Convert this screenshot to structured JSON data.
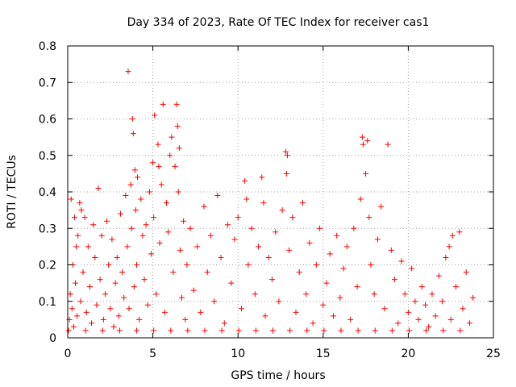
{
  "chart_data": {
    "type": "scatter",
    "title": "Day 334 of 2023, Rate Of TEC Index for receiver cas1",
    "xlabel": "GPS time / hours",
    "ylabel": "ROTI / TECUs",
    "xlim": [
      0,
      25
    ],
    "ylim": [
      0,
      0.8
    ],
    "xticks": [
      0,
      5,
      10,
      15,
      20,
      25
    ],
    "yticks": [
      0,
      0.1,
      0.2,
      0.3,
      0.4,
      0.5,
      0.6,
      0.7,
      0.8
    ],
    "xtick_labels": [
      "0",
      "5",
      "10",
      "15",
      "20",
      "25"
    ],
    "ytick_labels": [
      "0",
      "0.1",
      "0.2",
      "0.3",
      "0.4",
      "0.5",
      "0.6",
      "0.7",
      "0.8"
    ],
    "grid": true,
    "marker": "+",
    "color": "#ff0000",
    "series": [
      {
        "name": "ROTI",
        "points": [
          [
            0.1,
            0.05
          ],
          [
            0.15,
            0.12
          ],
          [
            0.2,
            0.38
          ],
          [
            0.25,
            0.08
          ],
          [
            0.3,
            0.2
          ],
          [
            0.35,
            0.03
          ],
          [
            0.4,
            0.33
          ],
          [
            0.45,
            0.15
          ],
          [
            0.5,
            0.25
          ],
          [
            0.55,
            0.06
          ],
          [
            0.6,
            0.28
          ],
          [
            0.7,
            0.37
          ],
          [
            0.75,
            0.1
          ],
          [
            0.8,
            0.35
          ],
          [
            0.9,
            0.18
          ],
          [
            1.0,
            0.33
          ],
          [
            1.1,
            0.07
          ],
          [
            1.2,
            0.25
          ],
          [
            1.3,
            0.14
          ],
          [
            1.4,
            0.04
          ],
          [
            1.5,
            0.31
          ],
          [
            1.6,
            0.22
          ],
          [
            1.7,
            0.09
          ],
          [
            1.8,
            0.41
          ],
          [
            1.9,
            0.16
          ],
          [
            2.0,
            0.28
          ],
          [
            2.1,
            0.05
          ],
          [
            2.2,
            0.12
          ],
          [
            2.3,
            0.32
          ],
          [
            2.4,
            0.2
          ],
          [
            2.5,
            0.08
          ],
          [
            2.6,
            0.27
          ],
          [
            2.7,
            0.03
          ],
          [
            2.8,
            0.15
          ],
          [
            2.9,
            0.22
          ],
          [
            3.0,
            0.06
          ],
          [
            3.1,
            0.34
          ],
          [
            3.2,
            0.18
          ],
          [
            3.3,
            0.11
          ],
          [
            3.4,
            0.39
          ],
          [
            3.5,
            0.25
          ],
          [
            3.55,
            0.73
          ],
          [
            3.6,
            0.08
          ],
          [
            3.7,
            0.42
          ],
          [
            3.75,
            0.3
          ],
          [
            3.8,
            0.6
          ],
          [
            3.85,
            0.56
          ],
          [
            3.9,
            0.14
          ],
          [
            3.95,
            0.46
          ],
          [
            4.0,
            0.35
          ],
          [
            4.05,
            0.2
          ],
          [
            4.1,
            0.44
          ],
          [
            4.2,
            0.05
          ],
          [
            4.3,
            0.38
          ],
          [
            4.4,
            0.28
          ],
          [
            4.5,
            0.16
          ],
          [
            4.6,
            0.31
          ],
          [
            4.7,
            0.09
          ],
          [
            4.8,
            0.4
          ],
          [
            4.9,
            0.23
          ],
          [
            5.0,
            0.48
          ],
          [
            5.05,
            0.33
          ],
          [
            5.1,
            0.61
          ],
          [
            5.2,
            0.12
          ],
          [
            5.3,
            0.53
          ],
          [
            5.35,
            0.47
          ],
          [
            5.4,
            0.26
          ],
          [
            5.5,
            0.42
          ],
          [
            5.6,
            0.64
          ],
          [
            5.7,
            0.07
          ],
          [
            5.8,
            0.37
          ],
          [
            5.9,
            0.29
          ],
          [
            6.0,
            0.5
          ],
          [
            6.1,
            0.55
          ],
          [
            6.2,
            0.18
          ],
          [
            6.3,
            0.47
          ],
          [
            6.4,
            0.64
          ],
          [
            6.45,
            0.58
          ],
          [
            6.5,
            0.4
          ],
          [
            6.55,
            0.52
          ],
          [
            6.6,
            0.24
          ],
          [
            6.7,
            0.11
          ],
          [
            6.8,
            0.32
          ],
          [
            6.9,
            0.05
          ],
          [
            7.0,
            0.2
          ],
          [
            7.2,
            0.3
          ],
          [
            7.4,
            0.13
          ],
          [
            7.6,
            0.25
          ],
          [
            7.8,
            0.07
          ],
          [
            8.0,
            0.36
          ],
          [
            8.2,
            0.18
          ],
          [
            8.4,
            0.28
          ],
          [
            8.6,
            0.1
          ],
          [
            8.8,
            0.39
          ],
          [
            9.0,
            0.22
          ],
          [
            9.2,
            0.04
          ],
          [
            9.4,
            0.31
          ],
          [
            9.6,
            0.15
          ],
          [
            9.8,
            0.27
          ],
          [
            10.0,
            0.33
          ],
          [
            10.2,
            0.08
          ],
          [
            10.4,
            0.43
          ],
          [
            10.5,
            0.38
          ],
          [
            10.6,
            0.2
          ],
          [
            10.8,
            0.3
          ],
          [
            11.0,
            0.12
          ],
          [
            11.2,
            0.25
          ],
          [
            11.4,
            0.44
          ],
          [
            11.5,
            0.37
          ],
          [
            11.6,
            0.06
          ],
          [
            11.8,
            0.22
          ],
          [
            12.0,
            0.16
          ],
          [
            12.2,
            0.29
          ],
          [
            12.4,
            0.1
          ],
          [
            12.6,
            0.35
          ],
          [
            12.8,
            0.51
          ],
          [
            12.85,
            0.45
          ],
          [
            12.9,
            0.5
          ],
          [
            13.0,
            0.24
          ],
          [
            13.2,
            0.33
          ],
          [
            13.4,
            0.07
          ],
          [
            13.6,
            0.18
          ],
          [
            13.8,
            0.37
          ],
          [
            14.0,
            0.12
          ],
          [
            14.2,
            0.26
          ],
          [
            14.4,
            0.04
          ],
          [
            14.6,
            0.2
          ],
          [
            14.8,
            0.3
          ],
          [
            15.0,
            0.09
          ],
          [
            15.2,
            0.15
          ],
          [
            15.4,
            0.23
          ],
          [
            15.6,
            0.06
          ],
          [
            15.8,
            0.28
          ],
          [
            16.0,
            0.11
          ],
          [
            16.2,
            0.19
          ],
          [
            16.4,
            0.25
          ],
          [
            16.6,
            0.05
          ],
          [
            16.8,
            0.3
          ],
          [
            17.0,
            0.14
          ],
          [
            17.2,
            0.38
          ],
          [
            17.3,
            0.55
          ],
          [
            17.35,
            0.53
          ],
          [
            17.5,
            0.45
          ],
          [
            17.6,
            0.54
          ],
          [
            17.7,
            0.33
          ],
          [
            17.8,
            0.2
          ],
          [
            18.0,
            0.12
          ],
          [
            18.2,
            0.27
          ],
          [
            18.4,
            0.36
          ],
          [
            18.6,
            0.08
          ],
          [
            18.8,
            0.53
          ],
          [
            19.0,
            0.24
          ],
          [
            19.2,
            0.16
          ],
          [
            19.4,
            0.04
          ],
          [
            19.6,
            0.21
          ],
          [
            19.8,
            0.12
          ],
          [
            20.0,
            0.07
          ],
          [
            20.2,
            0.19
          ],
          [
            20.4,
            0.1
          ],
          [
            20.6,
            0.05
          ],
          [
            20.8,
            0.14
          ],
          [
            21.0,
            0.09
          ],
          [
            21.2,
            0.03
          ],
          [
            21.4,
            0.12
          ],
          [
            21.6,
            0.06
          ],
          [
            21.8,
            0.17
          ],
          [
            22.0,
            0.1
          ],
          [
            22.2,
            0.22
          ],
          [
            22.4,
            0.25
          ],
          [
            22.5,
            0.05
          ],
          [
            22.6,
            0.28
          ],
          [
            22.8,
            0.14
          ],
          [
            23.0,
            0.29
          ],
          [
            23.2,
            0.08
          ],
          [
            23.4,
            0.18
          ],
          [
            23.6,
            0.04
          ],
          [
            23.8,
            0.11
          ],
          [
            0.05,
            0.02
          ],
          [
            1.05,
            0.02
          ],
          [
            2.05,
            0.02
          ],
          [
            3.05,
            0.02
          ],
          [
            4.05,
            0.02
          ],
          [
            5.05,
            0.02
          ],
          [
            6.05,
            0.02
          ],
          [
            7.05,
            0.02
          ],
          [
            8.05,
            0.02
          ],
          [
            9.05,
            0.02
          ],
          [
            10.05,
            0.02
          ],
          [
            11.05,
            0.02
          ],
          [
            12.05,
            0.02
          ],
          [
            13.05,
            0.02
          ],
          [
            14.05,
            0.02
          ],
          [
            15.05,
            0.02
          ],
          [
            16.05,
            0.02
          ],
          [
            17.05,
            0.02
          ],
          [
            18.05,
            0.02
          ],
          [
            19.05,
            0.02
          ],
          [
            20.05,
            0.02
          ],
          [
            21.05,
            0.02
          ],
          [
            22.05,
            0.02
          ],
          [
            23.05,
            0.02
          ]
        ]
      }
    ]
  }
}
